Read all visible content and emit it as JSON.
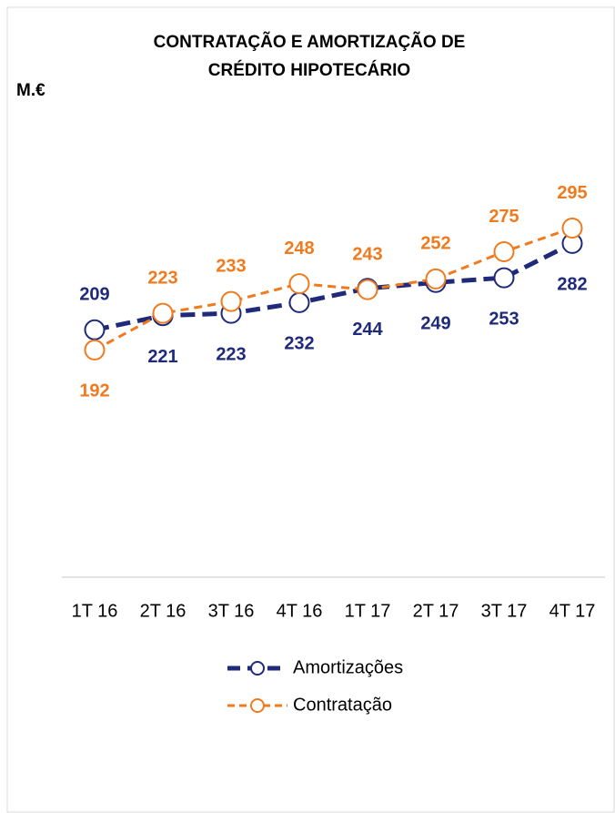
{
  "chart_data": {
    "type": "line",
    "title": [
      "CONTRATAÇÃO E AMORTIZAÇÃO DE",
      "CRÉDITO HIPOTECÁRIO"
    ],
    "y_label": "M.€",
    "categories": [
      "1T 16",
      "2T 16",
      "3T 16",
      "4T 16",
      "1T 17",
      "2T 17",
      "3T 17",
      "4T 17"
    ],
    "series": [
      {
        "name": "Amortizações",
        "color": "#1f2a7a",
        "values": [
          209,
          221,
          223,
          232,
          244,
          249,
          253,
          282
        ]
      },
      {
        "name": "Contratação",
        "color": "#f07a1e",
        "values": [
          192,
          223,
          233,
          248,
          243,
          252,
          275,
          295
        ]
      }
    ],
    "ylim": [
      0,
      400
    ],
    "legend": "bottom"
  }
}
